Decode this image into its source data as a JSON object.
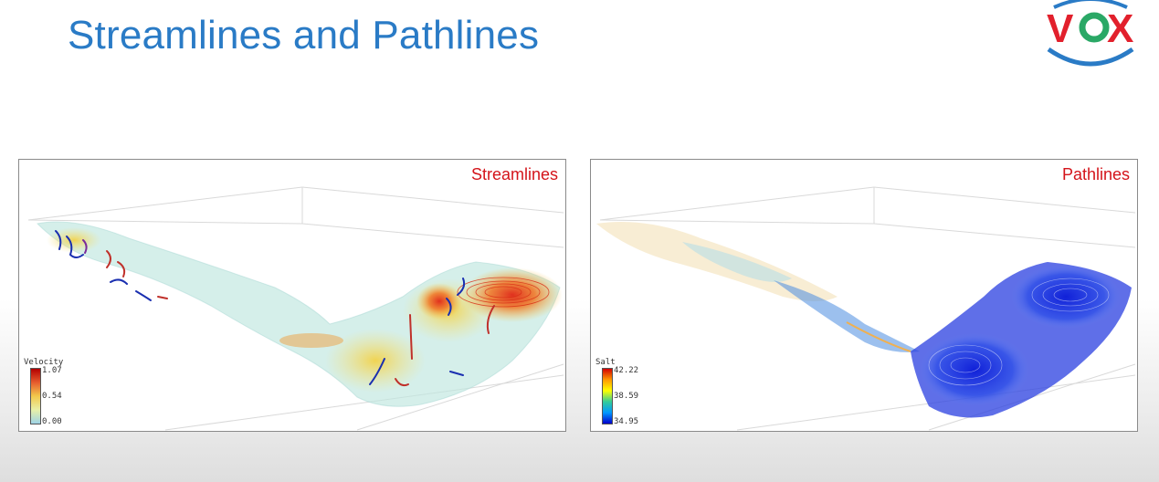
{
  "slide": {
    "title": "Streamlines and Pathlines"
  },
  "logo": {
    "text": "VOX",
    "colors": {
      "v": "#e2202c",
      "o": "#2aa866",
      "x": "#e2202c",
      "ring": "#2a7bc6"
    }
  },
  "panels": {
    "left": {
      "label": "Streamlines",
      "legend": {
        "title": "Velocity",
        "max": "1.07",
        "mid": "0.54",
        "min": "0.00",
        "gradient": [
          "#b30000",
          "#e65c2e",
          "#f2c94c",
          "#e8f0a8",
          "#9fd3e6"
        ]
      }
    },
    "right": {
      "label": "Pathlines",
      "legend": {
        "title": "Salt",
        "max": "42.22",
        "mid": "38.59",
        "min": "34.95",
        "gradient": [
          "#d40000",
          "#ff9900",
          "#ffff00",
          "#33cc99",
          "#0099ff",
          "#0000cc"
        ]
      }
    }
  },
  "colors": {
    "title": "#2a7bc6",
    "label": "#d4141a"
  }
}
